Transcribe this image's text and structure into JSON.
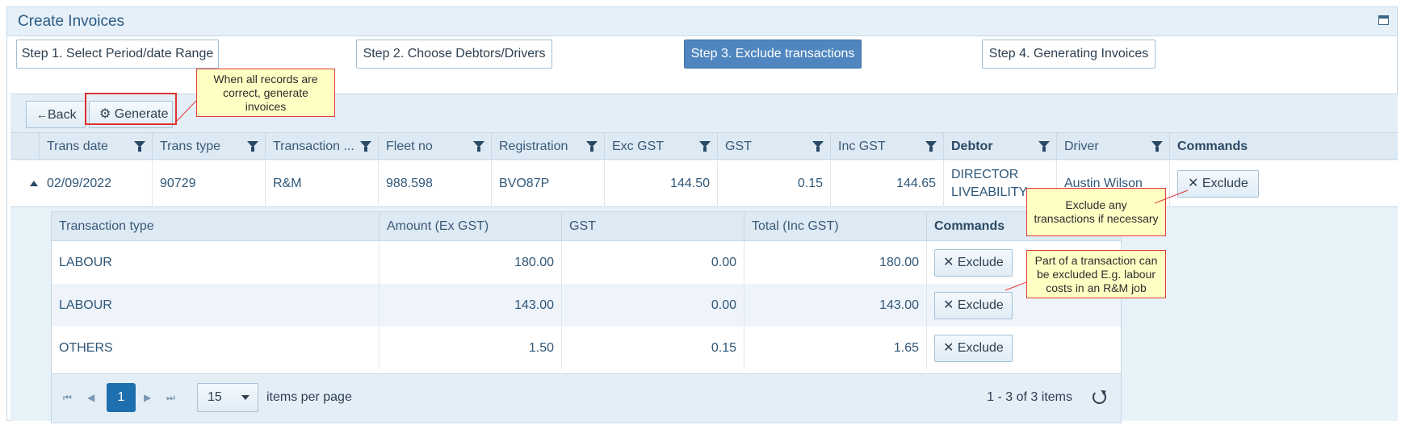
{
  "panel": {
    "title": "Create Invoices"
  },
  "steps": [
    "Step 1. Select Period/date Range",
    "Step 2. Choose Debtors/Drivers",
    "Step 3. Exclude transactions",
    "Step 4. Generating Invoices"
  ],
  "active_step": 2,
  "toolbar": {
    "back_label": "Back",
    "generate_label": "Generate"
  },
  "callouts": {
    "generate": "When all records are correct, generate invoices",
    "exclude": "Exclude any transactions if necessary",
    "partial": "Part of a transaction can be excluded E.g. labour costs in an R&M job"
  },
  "main_table": {
    "columns": [
      "Trans date",
      "Trans type",
      "Transaction ...",
      "Fleet no",
      "Registration",
      "Exc GST",
      "GST",
      "Inc GST",
      "Debtor",
      "Driver",
      "Commands"
    ],
    "row": {
      "trans_date": "02/09/2022",
      "trans_type": "90729",
      "transaction": "R&M",
      "fleet_no": "988.598",
      "registration": "BVO87P",
      "exc_gst": "144.50",
      "gst": "0.15",
      "inc_gst": "144.65",
      "debtor": "DIRECTOR LIVEABILITY",
      "driver": "Austin Wilson",
      "command": "Exclude"
    }
  },
  "detail_table": {
    "columns": [
      "Transaction type",
      "Amount (Ex GST)",
      "GST",
      "Total (Inc GST)",
      "Commands"
    ],
    "rows": [
      {
        "type": "LABOUR",
        "amount": "180.00",
        "gst": "0.00",
        "total": "180.00",
        "command": "Exclude"
      },
      {
        "type": "LABOUR",
        "amount": "143.00",
        "gst": "0.00",
        "total": "143.00",
        "command": "Exclude"
      },
      {
        "type": "OTHERS",
        "amount": "1.50",
        "gst": "0.15",
        "total": "1.65",
        "command": "Exclude"
      }
    ],
    "pager": {
      "current_page": "1",
      "page_size": "15",
      "items_per_page_label": "items per page",
      "items_info": "1 - 3 of 3 items"
    }
  },
  "colors": {
    "accent": "#4f86bf",
    "callout_border": "#e23b38",
    "callout_bg": "#ffffc4"
  }
}
